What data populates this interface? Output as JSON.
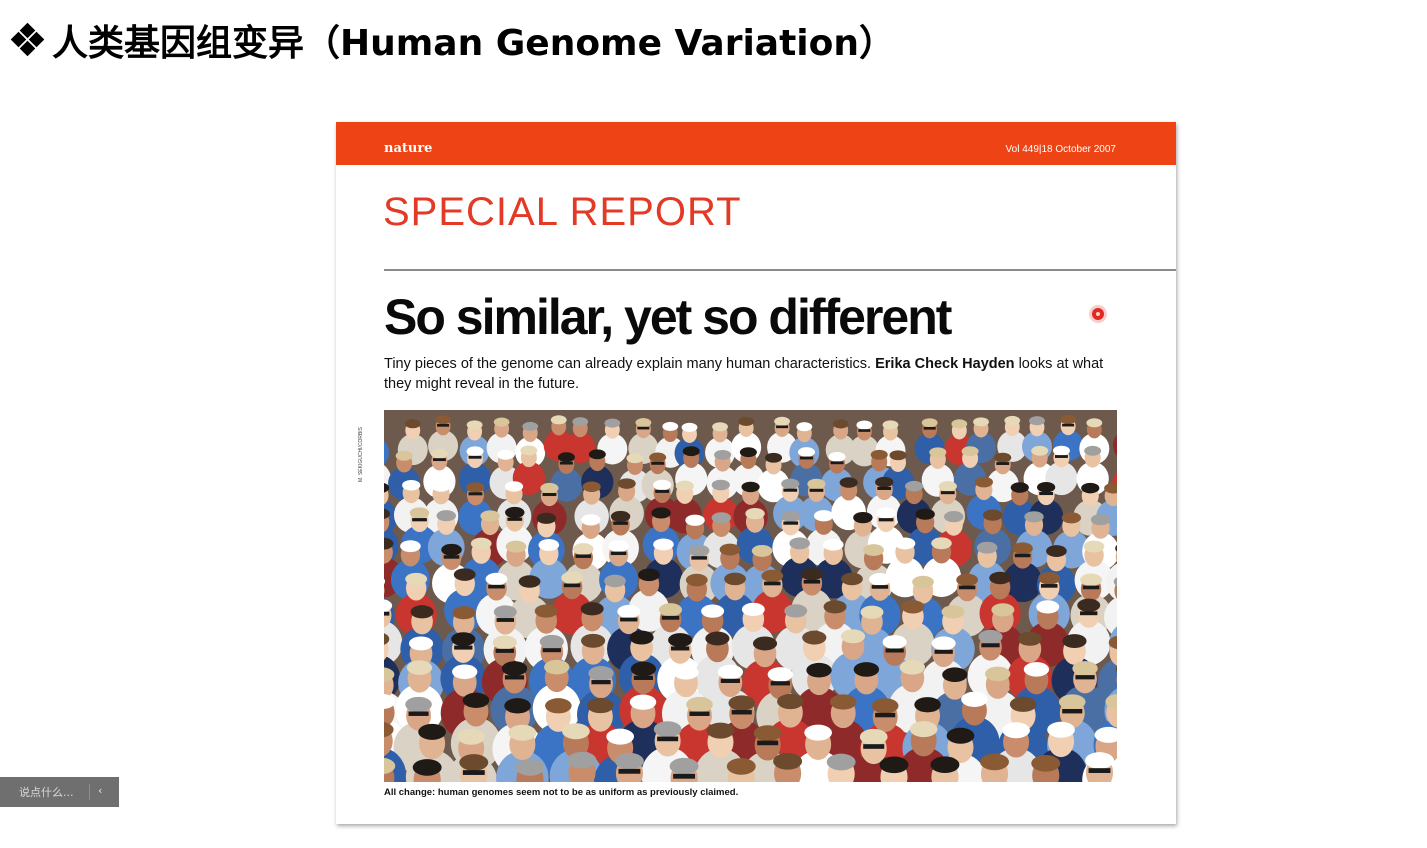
{
  "slide": {
    "title": "人类基因组变异（Human Genome Variation）",
    "bullet_icon": "diamond-bullet-icon"
  },
  "article": {
    "brand": "nature",
    "issue": "Vol 449|18 October 2007",
    "section": "SPECIAL REPORT",
    "headline": "So similar, yet so different",
    "standfirst_before": "Tiny pieces of the genome can already explain many human characteristics. ",
    "author": "Erika Check Hayden",
    "standfirst_after": " looks at what they might reveal in the future.",
    "photo_credit": "M. SEKIGUCHI/CORBIS",
    "photo_alt": "crowd-photo",
    "caption": "All change: human genomes seem not to be as uniform as previously claimed.",
    "colors": {
      "masthead": "#ee4415",
      "section": "#e23a25",
      "pointer": "#e02a20"
    }
  },
  "comment": {
    "placeholder": "说点什么...",
    "collapse_icon": "chevron-left-icon"
  }
}
